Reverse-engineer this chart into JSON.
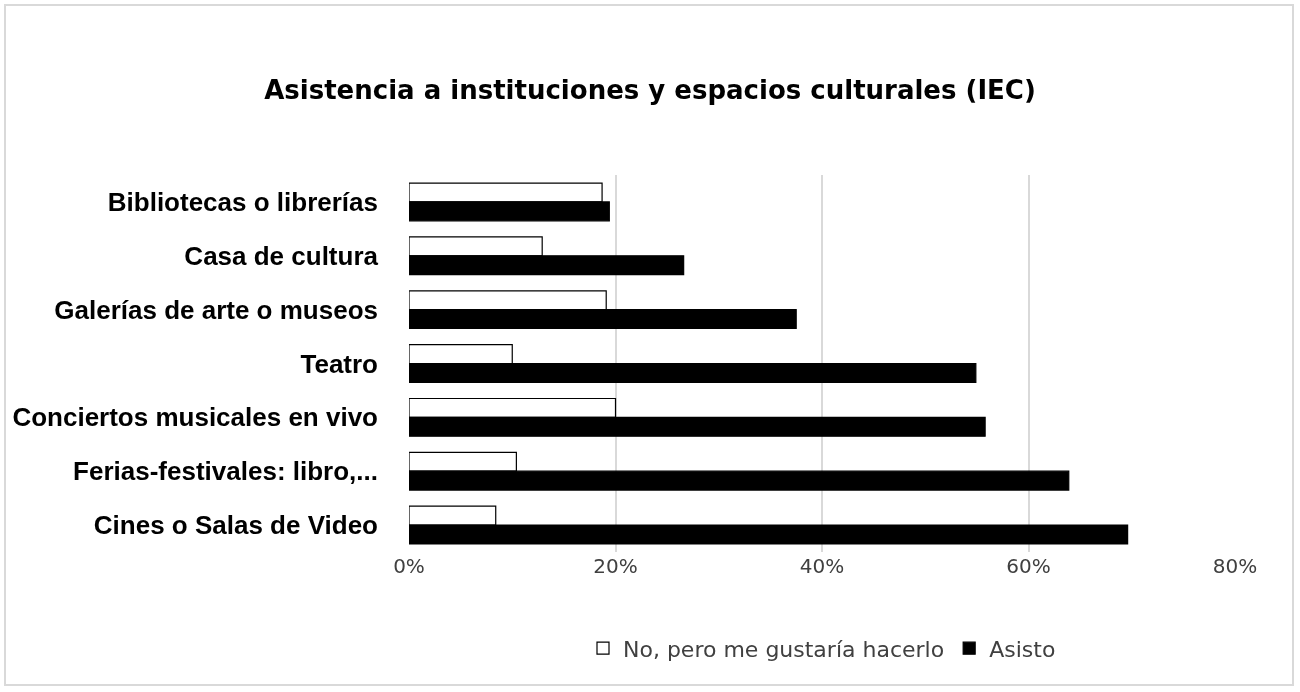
{
  "chart_data": {
    "type": "bar",
    "orientation": "horizontal",
    "title": "Asistencia a instituciones y espacios culturales (IEC)",
    "categories": [
      "Bibliotecas o librerías",
      "Casa de cultura",
      "Galerías de arte o museos",
      "Teatro",
      "Conciertos musicales en vivo",
      "Ferias-festivales: libro,...",
      "Cines o Salas de Video"
    ],
    "series": [
      {
        "name": "No, pero me gustaría hacerlo",
        "color": "#ffffff",
        "values": [
          18.7,
          12.9,
          19.1,
          10.0,
          20.0,
          10.4,
          8.4
        ]
      },
      {
        "name": "Asisto",
        "color": "#000000",
        "values": [
          19.4,
          26.6,
          37.5,
          54.9,
          55.8,
          63.9,
          69.6
        ]
      }
    ],
    "xlim": [
      0,
      80
    ],
    "xticks": [
      {
        "value": 0,
        "label": "0%"
      },
      {
        "value": 20,
        "label": "20%"
      },
      {
        "value": 40,
        "label": "40%"
      },
      {
        "value": 60,
        "label": "60%"
      },
      {
        "value": 80,
        "label": "80%"
      }
    ],
    "grid": "x",
    "legend": "bottom"
  }
}
